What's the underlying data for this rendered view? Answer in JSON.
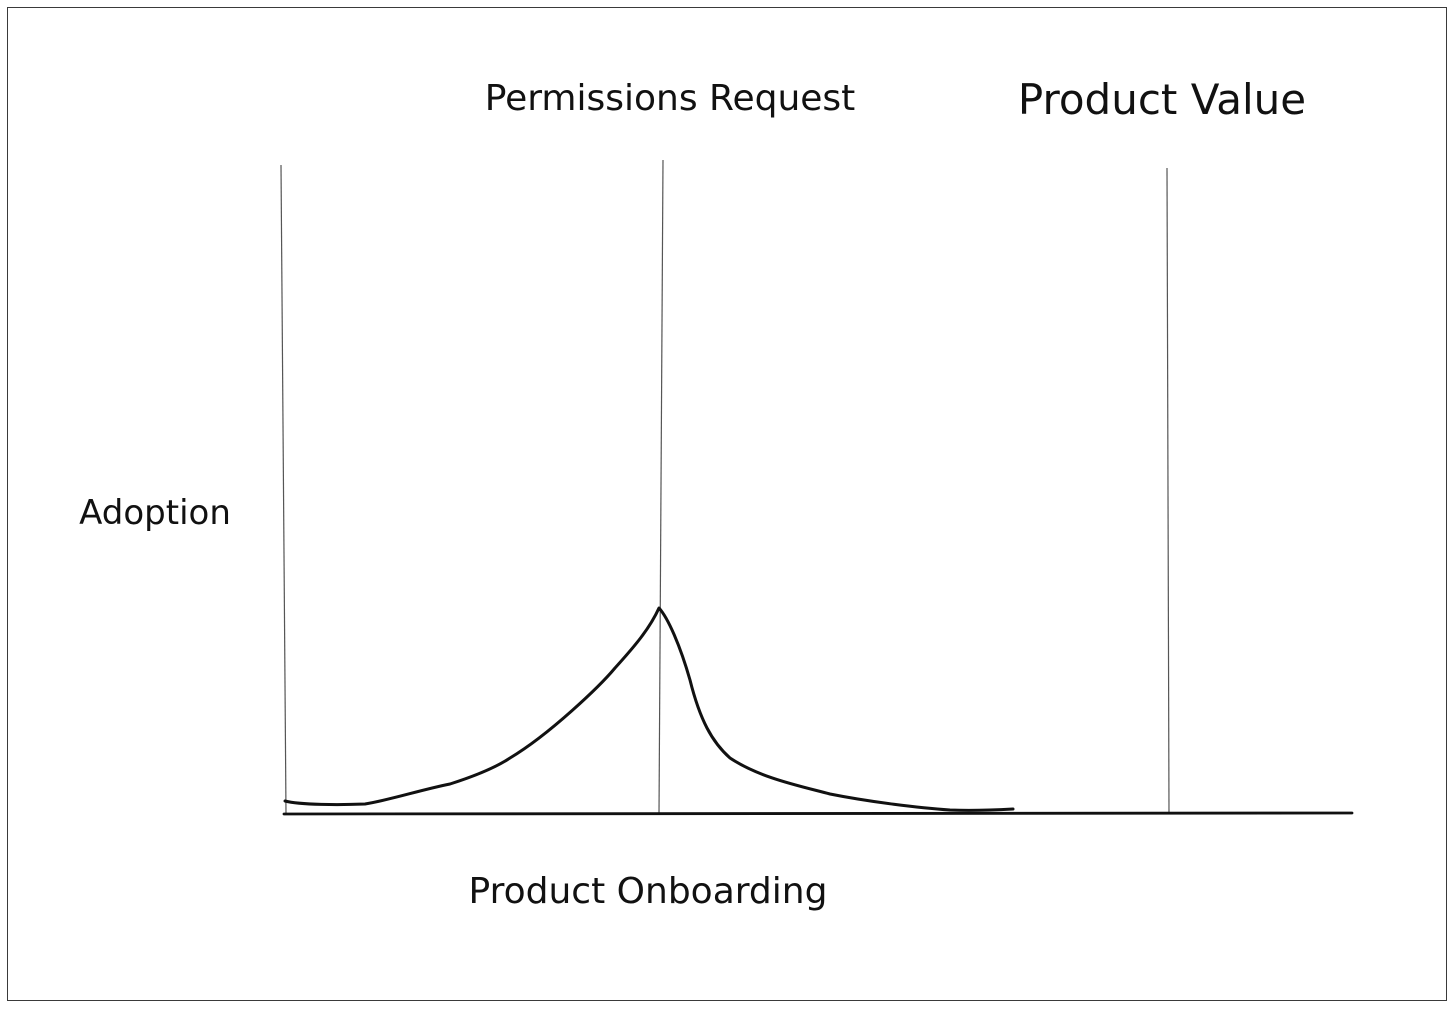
{
  "labels": {
    "permissions": "Permissions Request",
    "value": "Product Value",
    "adoption": "Adoption",
    "onboarding": "Product Onboarding"
  },
  "curve": {
    "description_points": [
      [
        0.0,
        0.06
      ],
      [
        0.07,
        0.05
      ],
      [
        0.15,
        0.1
      ],
      [
        0.25,
        0.2
      ],
      [
        0.37,
        0.37
      ],
      [
        0.45,
        0.56
      ],
      [
        0.5,
        1.0
      ],
      [
        0.56,
        0.38
      ],
      [
        0.66,
        0.15
      ],
      [
        0.77,
        0.05
      ],
      [
        0.88,
        0.01
      ],
      [
        0.98,
        0.02
      ]
    ]
  },
  "colors": {
    "ink": "#111111",
    "thin_line": "#555555"
  }
}
